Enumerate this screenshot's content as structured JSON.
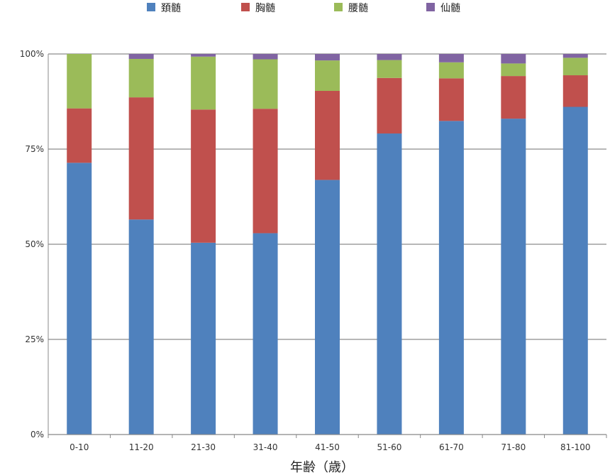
{
  "chart_data": {
    "type": "bar",
    "stacked": true,
    "percent": true,
    "title": "",
    "xlabel": "年齢（歳）",
    "ylabel": "",
    "ylim": [
      0,
      100
    ],
    "yticks": [
      "0%",
      "25%",
      "50%",
      "75%",
      "100%"
    ],
    "grid": true,
    "legend_position": "top",
    "categories": [
      "0-10",
      "11-20",
      "21-30",
      "31-40",
      "41-50",
      "51-60",
      "61-70",
      "71-80",
      "81-100"
    ],
    "series": [
      {
        "name": "頚髄",
        "color": "#4F81BD",
        "values": [
          71.4,
          56.5,
          50.4,
          52.9,
          66.9,
          79.1,
          82.4,
          83.0,
          86.1
        ]
      },
      {
        "name": "胸髄",
        "color": "#C0504D",
        "values": [
          14.3,
          32.1,
          35.0,
          32.7,
          23.4,
          14.6,
          11.2,
          11.2,
          8.3
        ]
      },
      {
        "name": "腰髄",
        "color": "#9BBB59",
        "values": [
          14.3,
          10.1,
          13.9,
          13.0,
          8.0,
          4.7,
          4.2,
          3.3,
          4.6
        ]
      },
      {
        "name": "仙髄",
        "color": "#8064A2",
        "values": [
          0.0,
          1.3,
          0.7,
          1.4,
          1.7,
          1.6,
          2.2,
          2.5,
          1.0
        ]
      }
    ]
  }
}
